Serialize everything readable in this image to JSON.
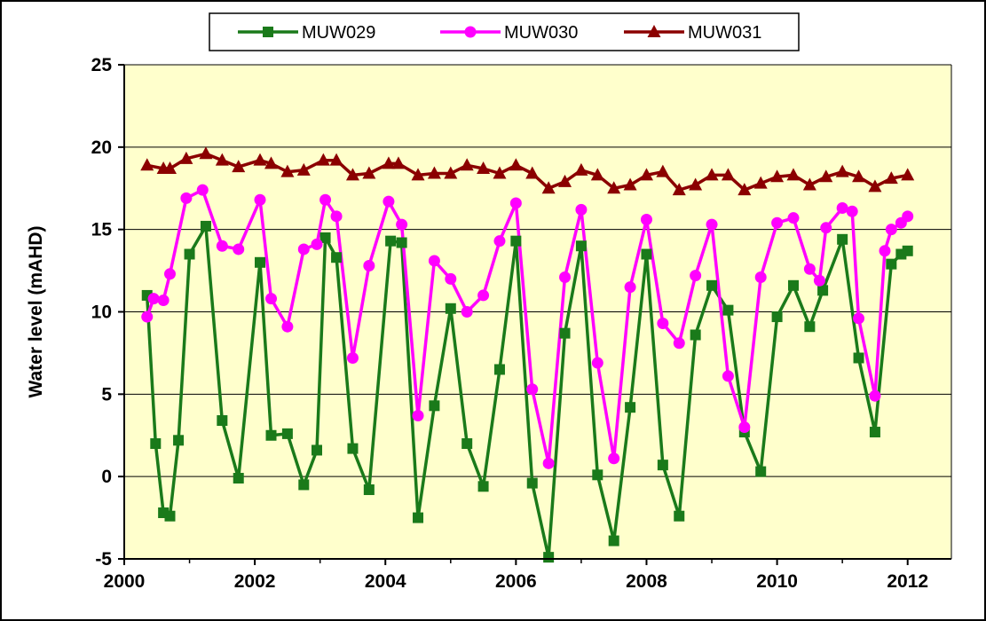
{
  "chart_data": {
    "type": "line",
    "title": "",
    "xlabel": "",
    "ylabel": "Water level  (mAHD)",
    "xlim": [
      2000,
      2012.67
    ],
    "ylim": [
      -5,
      25
    ],
    "xticks": [
      2000,
      2002,
      2004,
      2006,
      2008,
      2010,
      2012
    ],
    "yticks": [
      -5,
      0,
      5,
      10,
      15,
      20,
      25
    ],
    "grid": true,
    "legend": "top",
    "plot_background": "#FFFFCC",
    "series": [
      {
        "name": "MUW029",
        "color": "#1A7A1A",
        "marker": "square",
        "x": [
          2000.35,
          2000.48,
          2000.6,
          2000.7,
          2000.83,
          2001.0,
          2001.25,
          2001.5,
          2001.75,
          2002.08,
          2002.25,
          2002.5,
          2002.75,
          2002.95,
          2003.08,
          2003.25,
          2003.5,
          2003.75,
          2004.08,
          2004.25,
          2004.5,
          2004.75,
          2005.0,
          2005.25,
          2005.5,
          2005.75,
          2006.0,
          2006.25,
          2006.5,
          2006.75,
          2007.0,
          2007.25,
          2007.5,
          2007.75,
          2008.0,
          2008.25,
          2008.5,
          2008.75,
          2009.0,
          2009.25,
          2009.5,
          2009.75,
          2010.0,
          2010.25,
          2010.5,
          2010.7,
          2011.0,
          2011.25,
          2011.5,
          2011.75,
          2011.9,
          2012.0
        ],
        "values": [
          11.0,
          2.0,
          -2.2,
          -2.4,
          2.2,
          13.5,
          15.2,
          3.4,
          -0.1,
          13.0,
          2.5,
          2.6,
          -0.5,
          1.6,
          14.5,
          13.3,
          1.7,
          -0.8,
          14.3,
          14.2,
          -2.5,
          4.3,
          10.2,
          2.0,
          -0.6,
          6.5,
          14.3,
          -0.4,
          -4.9,
          8.7,
          14.0,
          0.1,
          -3.9,
          4.2,
          13.5,
          0.7,
          -2.4,
          8.6,
          11.6,
          10.1,
          2.7,
          0.3,
          9.7,
          11.6,
          9.1,
          11.3,
          14.4,
          7.2,
          2.7,
          12.9,
          13.5,
          13.7
        ]
      },
      {
        "name": "MUW030",
        "color": "#FF00FF",
        "marker": "circle",
        "x": [
          2000.35,
          2000.45,
          2000.6,
          2000.7,
          2000.95,
          2001.2,
          2001.5,
          2001.75,
          2002.08,
          2002.25,
          2002.5,
          2002.75,
          2002.95,
          2003.08,
          2003.25,
          2003.5,
          2003.75,
          2004.05,
          2004.25,
          2004.5,
          2004.75,
          2005.0,
          2005.25,
          2005.5,
          2005.75,
          2006.0,
          2006.25,
          2006.5,
          2006.75,
          2007.0,
          2007.25,
          2007.5,
          2007.75,
          2008.0,
          2008.25,
          2008.5,
          2008.75,
          2009.0,
          2009.25,
          2009.5,
          2009.75,
          2010.0,
          2010.25,
          2010.5,
          2010.65,
          2010.75,
          2011.0,
          2011.15,
          2011.25,
          2011.5,
          2011.65,
          2011.75,
          2011.9,
          2012.0
        ],
        "values": [
          9.7,
          10.8,
          10.7,
          12.3,
          16.9,
          17.4,
          14.0,
          13.8,
          16.8,
          10.8,
          9.1,
          13.8,
          14.1,
          16.8,
          15.8,
          7.2,
          12.8,
          16.7,
          15.3,
          3.7,
          13.1,
          12.0,
          10.0,
          11.0,
          14.3,
          16.6,
          5.3,
          0.8,
          12.1,
          16.2,
          6.9,
          1.1,
          11.5,
          15.6,
          9.3,
          8.1,
          12.2,
          15.3,
          6.1,
          3.0,
          12.1,
          15.4,
          15.7,
          12.6,
          11.9,
          15.1,
          16.3,
          16.1,
          9.6,
          4.9,
          13.7,
          15.0,
          15.4,
          15.8
        ]
      },
      {
        "name": "MUW031",
        "color": "#8B0000",
        "marker": "triangle",
        "x": [
          2000.35,
          2000.6,
          2000.7,
          2000.95,
          2001.25,
          2001.5,
          2001.75,
          2002.08,
          2002.25,
          2002.5,
          2002.75,
          2003.05,
          2003.25,
          2003.5,
          2003.75,
          2004.05,
          2004.2,
          2004.5,
          2004.75,
          2005.0,
          2005.25,
          2005.5,
          2005.75,
          2006.0,
          2006.25,
          2006.5,
          2006.75,
          2007.0,
          2007.25,
          2007.5,
          2007.75,
          2008.0,
          2008.25,
          2008.5,
          2008.75,
          2009.0,
          2009.25,
          2009.5,
          2009.75,
          2010.0,
          2010.25,
          2010.5,
          2010.75,
          2011.0,
          2011.25,
          2011.5,
          2011.75,
          2012.0
        ],
        "values": [
          18.9,
          18.7,
          18.7,
          19.3,
          19.6,
          19.2,
          18.8,
          19.2,
          19.0,
          18.5,
          18.6,
          19.2,
          19.2,
          18.3,
          18.4,
          19.0,
          19.0,
          18.3,
          18.4,
          18.4,
          18.9,
          18.7,
          18.4,
          18.9,
          18.4,
          17.5,
          17.9,
          18.6,
          18.3,
          17.5,
          17.7,
          18.3,
          18.5,
          17.4,
          17.7,
          18.3,
          18.3,
          17.4,
          17.8,
          18.2,
          18.3,
          17.7,
          18.2,
          18.5,
          18.2,
          17.6,
          18.1,
          18.3
        ]
      }
    ]
  }
}
